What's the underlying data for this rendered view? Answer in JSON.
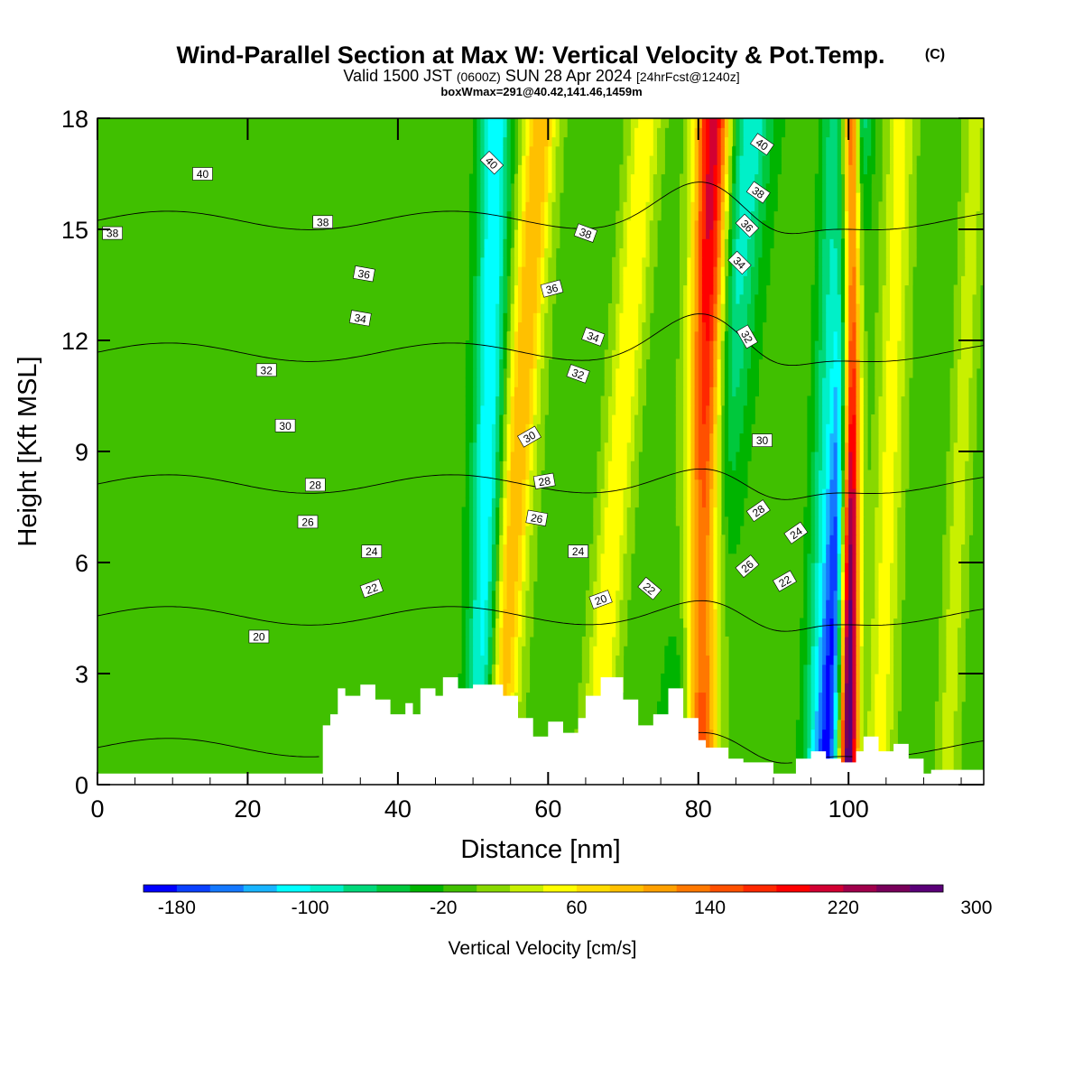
{
  "chart_data": {
    "type": "heatmap",
    "title": "Wind-Parallel Section at Max W: Vertical Velocity & Pot.Temp.",
    "title_mark": "(C)",
    "subtitle_main": "Valid 1500 JST",
    "subtitle_utc": "(0600Z)",
    "subtitle_date": "SUN 28 Apr 2024",
    "subtitle_fcst": "[24hrFcst@1240z]",
    "subtitle2": "boxWmax=291@40.42,141.46,1459m",
    "xlabel": "Distance [nm]",
    "ylabel": "Height [Kft MSL]",
    "xlim": [
      0,
      118
    ],
    "ylim": [
      0,
      18
    ],
    "x_ticks": [
      0,
      20,
      40,
      60,
      80,
      100
    ],
    "y_ticks": [
      0,
      3,
      6,
      9,
      12,
      15,
      18
    ],
    "colorbar_label": "Vertical Velocity [cm/s]",
    "colorbar_min": -200,
    "colorbar_step": 20,
    "colorbar_ticks": [
      -180,
      -100,
      -20,
      60,
      140,
      220,
      300
    ],
    "colorbar_colors": [
      "#0000ff",
      "#0a40ff",
      "#1478ff",
      "#18b4ff",
      "#00ffff",
      "#00f0c8",
      "#00d87a",
      "#00c83c",
      "#00b400",
      "#40c000",
      "#88d800",
      "#c8f000",
      "#ffff00",
      "#ffdc00",
      "#ffc000",
      "#ffa000",
      "#ff7800",
      "#ff5000",
      "#ff2800",
      "#ff0000",
      "#d20032",
      "#a0004b",
      "#78005a",
      "#5a0078"
    ],
    "background_value": -10,
    "updraft_bands": [
      {
        "x_bottom": 53,
        "x_top": 59,
        "width": 2.2,
        "peak": 110
      },
      {
        "x_bottom": 66,
        "x_top": 73,
        "width": 2.0,
        "peak": 70
      },
      {
        "x_bottom": 80,
        "x_top": 82,
        "width": 2.3,
        "peak": 230
      },
      {
        "x_bottom": 100,
        "x_top": 100.5,
        "width": 1.2,
        "peak": 300
      },
      {
        "x_bottom": 104,
        "x_top": 107,
        "width": 1.8,
        "peak": 60
      },
      {
        "x_bottom": 113,
        "x_top": 117,
        "width": 1.5,
        "peak": 40
      }
    ],
    "downdraft_bands": [
      {
        "x_bottom": 51,
        "x_top": 53,
        "width": 2.0,
        "peak": -110
      },
      {
        "x_bottom": 78,
        "x_top": 87,
        "width": 3.0,
        "peak": -90
      },
      {
        "x_bottom": 97,
        "x_top": 101,
        "width": 1.6,
        "peak": -170
      },
      {
        "x_bottom": 95,
        "x_top": 98,
        "width": 1.5,
        "peak": -60
      }
    ],
    "terrain_x": [
      0,
      30,
      30,
      31,
      31,
      32,
      32,
      33,
      33,
      35,
      35,
      37,
      37,
      39,
      39,
      41,
      41,
      42,
      42,
      43,
      43,
      45,
      45,
      46,
      46,
      48,
      48,
      50,
      50,
      54,
      54,
      56,
      56,
      58,
      58,
      60,
      60,
      62,
      62,
      64,
      64,
      65,
      65,
      67,
      67,
      70,
      70,
      72,
      72,
      74,
      74,
      76,
      76,
      78,
      78,
      80,
      80,
      81,
      81,
      84,
      84,
      86,
      86,
      90,
      90,
      93,
      93,
      95,
      95,
      97,
      97,
      99,
      99,
      101,
      101,
      102,
      102,
      104,
      104,
      106,
      106,
      108,
      108,
      110,
      110,
      111,
      111,
      118
    ],
    "terrain_y": [
      0.3,
      0.3,
      1.6,
      1.6,
      1.9,
      1.9,
      2.6,
      2.6,
      2.4,
      2.4,
      2.7,
      2.7,
      2.3,
      2.3,
      1.9,
      1.9,
      2.2,
      2.2,
      1.9,
      1.9,
      2.6,
      2.6,
      2.4,
      2.4,
      2.9,
      2.9,
      2.6,
      2.6,
      2.7,
      2.7,
      2.4,
      2.4,
      1.8,
      1.8,
      1.3,
      1.3,
      1.7,
      1.7,
      1.4,
      1.4,
      1.8,
      1.8,
      2.4,
      2.4,
      2.9,
      2.9,
      2.3,
      2.3,
      1.6,
      1.6,
      1.9,
      1.9,
      2.6,
      2.6,
      1.8,
      1.8,
      1.2,
      1.2,
      1.0,
      1.0,
      0.7,
      0.7,
      0.6,
      0.6,
      0.3,
      0.3,
      0.7,
      0.7,
      0.9,
      0.9,
      0.7,
      0.7,
      0.6,
      0.6,
      0.9,
      0.9,
      1.3,
      1.3,
      0.9,
      0.9,
      1.1,
      1.1,
      0.7,
      0.7,
      0.3,
      0.3,
      0.4,
      0.4
    ],
    "theta_levels": [
      20,
      22,
      24,
      26,
      28,
      30,
      32,
      34,
      36,
      38,
      40
    ],
    "theta_labels": [
      {
        "text": "40",
        "x": 14,
        "y": 16.5,
        "rot": 0
      },
      {
        "text": "38",
        "x": 2,
        "y": 14.9,
        "rot": 0
      },
      {
        "text": "38",
        "x": 30,
        "y": 15.2,
        "rot": 0
      },
      {
        "text": "36",
        "x": 35.5,
        "y": 13.8,
        "rot": 10
      },
      {
        "text": "34",
        "x": 35,
        "y": 12.6,
        "rot": 10
      },
      {
        "text": "32",
        "x": 22.5,
        "y": 11.2,
        "rot": 0
      },
      {
        "text": "30",
        "x": 25,
        "y": 9.7,
        "rot": 0
      },
      {
        "text": "28",
        "x": 29,
        "y": 8.1,
        "rot": 0
      },
      {
        "text": "26",
        "x": 28,
        "y": 7.1,
        "rot": 0
      },
      {
        "text": "24",
        "x": 36.5,
        "y": 6.3,
        "rot": 0
      },
      {
        "text": "22",
        "x": 36.5,
        "y": 5.3,
        "rot": -20
      },
      {
        "text": "20",
        "x": 21.5,
        "y": 4.0,
        "rot": 0
      },
      {
        "text": "40",
        "x": 52.5,
        "y": 16.8,
        "rot": 45
      },
      {
        "text": "38",
        "x": 65,
        "y": 14.9,
        "rot": 20
      },
      {
        "text": "36",
        "x": 60.5,
        "y": 13.4,
        "rot": -15
      },
      {
        "text": "34",
        "x": 66,
        "y": 12.1,
        "rot": 20
      },
      {
        "text": "32",
        "x": 64,
        "y": 11.1,
        "rot": 20
      },
      {
        "text": "30",
        "x": 57.5,
        "y": 9.4,
        "rot": -30
      },
      {
        "text": "28",
        "x": 59.5,
        "y": 8.2,
        "rot": -10
      },
      {
        "text": "26",
        "x": 58.5,
        "y": 7.2,
        "rot": 10
      },
      {
        "text": "24",
        "x": 64,
        "y": 6.3,
        "rot": 0
      },
      {
        "text": "20",
        "x": 67,
        "y": 5.0,
        "rot": -20
      },
      {
        "text": "22",
        "x": 73.5,
        "y": 5.3,
        "rot": 40
      },
      {
        "text": "40",
        "x": 88.5,
        "y": 17.3,
        "rot": 35
      },
      {
        "text": "38",
        "x": 88,
        "y": 16.0,
        "rot": 35
      },
      {
        "text": "36",
        "x": 86.5,
        "y": 15.1,
        "rot": 45
      },
      {
        "text": "34",
        "x": 85.5,
        "y": 14.1,
        "rot": 45
      },
      {
        "text": "32",
        "x": 86.5,
        "y": 12.1,
        "rot": 60
      },
      {
        "text": "30",
        "x": 88.5,
        "y": 9.3,
        "rot": 0
      },
      {
        "text": "28",
        "x": 88,
        "y": 7.4,
        "rot": -35
      },
      {
        "text": "24",
        "x": 93,
        "y": 6.8,
        "rot": -35
      },
      {
        "text": "26",
        "x": 86.5,
        "y": 5.9,
        "rot": -40
      },
      {
        "text": "22",
        "x": 91.5,
        "y": 5.5,
        "rot": -30
      }
    ]
  }
}
